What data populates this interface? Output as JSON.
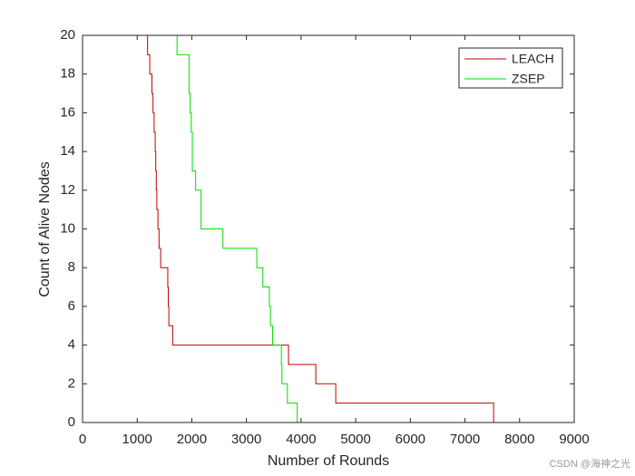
{
  "chart_data": {
    "type": "step",
    "xlabel": "Number of Rounds",
    "ylabel": "Count of Alive Nodes",
    "xlim": [
      0,
      9000
    ],
    "xticks": [
      0,
      1000,
      2000,
      3000,
      4000,
      5000,
      6000,
      7000,
      8000,
      9000
    ],
    "ylim": [
      0,
      20
    ],
    "yticks": [
      0,
      2,
      4,
      6,
      8,
      10,
      12,
      14,
      16,
      18,
      20
    ],
    "legend": "upper right",
    "series": [
      {
        "name": "LEACH",
        "color": "#c00000",
        "x": [
          1150,
          1190,
          1230,
          1270,
          1290,
          1310,
          1330,
          1340,
          1350,
          1360,
          1380,
          1400,
          1430,
          1560,
          1570,
          1580,
          1650,
          3770,
          4270,
          4635,
          7525
        ],
        "values": [
          20,
          19,
          18,
          17,
          16,
          15,
          14,
          13,
          12,
          11,
          10,
          9,
          8,
          7,
          6,
          5,
          4,
          3,
          2,
          1,
          0
        ]
      },
      {
        "name": "ZSEP",
        "color": "#00dd00",
        "x": [
          1700,
          1730,
          1950,
          1970,
          1990,
          2010,
          2070,
          2170,
          2570,
          3190,
          3300,
          3420,
          3440,
          3480,
          3640,
          3650,
          3750,
          3930
        ],
        "values": [
          20,
          19,
          17,
          16,
          15,
          13,
          12,
          10,
          9,
          8,
          7,
          6,
          5,
          4,
          3,
          2,
          1,
          0
        ]
      }
    ]
  },
  "watermark": "CSDN @海神之光"
}
